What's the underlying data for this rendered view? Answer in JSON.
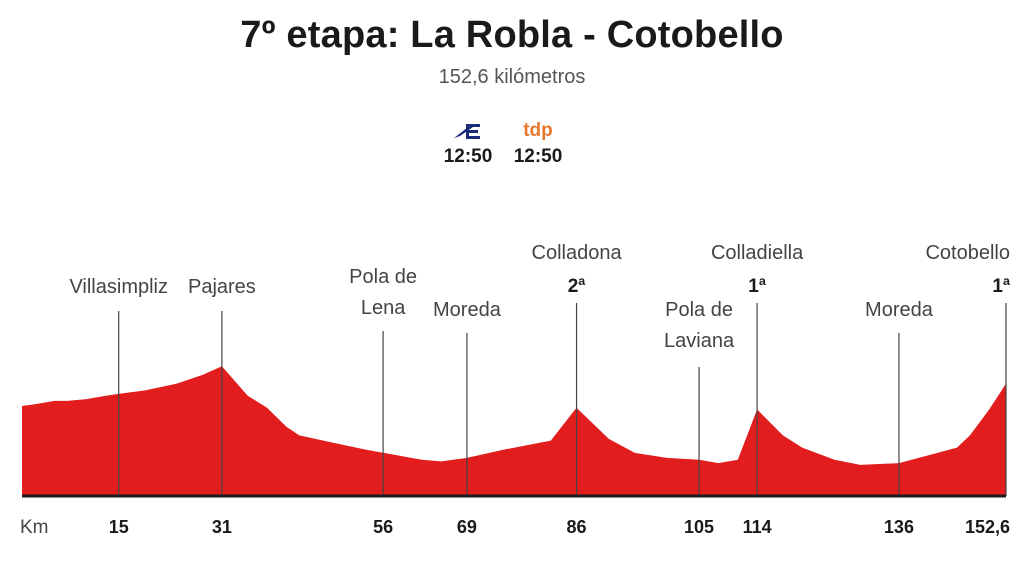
{
  "header": {
    "title": "7º etapa: La Robla - Cotobello",
    "subtitle": "152,6 kilómetros"
  },
  "broadcasters": [
    {
      "logo_icon": "eurosport-icon",
      "time": "12:50"
    },
    {
      "logo_text": "tdp",
      "time": "12:50",
      "logo_color": "#e8772e"
    }
  ],
  "colors": {
    "fill": "#e11d1d",
    "axis": "#1a1a1a",
    "marker_line": "#444444"
  },
  "chart_data": {
    "type": "area",
    "xlabel": "Km",
    "x_ticks": [
      {
        "x": 15,
        "label": "15"
      },
      {
        "x": 31,
        "label": "31"
      },
      {
        "x": 56,
        "label": "56"
      },
      {
        "x": 69,
        "label": "69"
      },
      {
        "x": 86,
        "label": "86"
      },
      {
        "x": 105,
        "label": "105"
      },
      {
        "x": 114,
        "label": "114"
      },
      {
        "x": 136,
        "label": "136"
      },
      {
        "x": 152.6,
        "label": "152,6"
      }
    ],
    "profile": [
      [
        0,
        52
      ],
      [
        2,
        53
      ],
      [
        5,
        55
      ],
      [
        7,
        55
      ],
      [
        10,
        56
      ],
      [
        13,
        58
      ],
      [
        15,
        59
      ],
      [
        19,
        61
      ],
      [
        24,
        65
      ],
      [
        28,
        70
      ],
      [
        31,
        75
      ],
      [
        35,
        58
      ],
      [
        38,
        51
      ],
      [
        41,
        40
      ],
      [
        43,
        35
      ],
      [
        48,
        31
      ],
      [
        53,
        27
      ],
      [
        56,
        25
      ],
      [
        62,
        21
      ],
      [
        65,
        20
      ],
      [
        69,
        22
      ],
      [
        75,
        27
      ],
      [
        82,
        32
      ],
      [
        86,
        51
      ],
      [
        91,
        33
      ],
      [
        95,
        25
      ],
      [
        100,
        22
      ],
      [
        105,
        21
      ],
      [
        108,
        19
      ],
      [
        111,
        21
      ],
      [
        114,
        50
      ],
      [
        118,
        35
      ],
      [
        121,
        28
      ],
      [
        126,
        21
      ],
      [
        130,
        18
      ],
      [
        136,
        19
      ],
      [
        140,
        23
      ],
      [
        145,
        28
      ],
      [
        147,
        35
      ],
      [
        150,
        50
      ],
      [
        152.6,
        65
      ]
    ],
    "places": [
      {
        "name": "Villasimpliz",
        "km": 15
      },
      {
        "name": "Pajares",
        "km": 31
      },
      {
        "name": "Pola de Lena",
        "km": 56
      },
      {
        "name": "Moreda",
        "km": 69
      },
      {
        "name": "Colladona",
        "km": 86,
        "category": "2ª"
      },
      {
        "name": "Pola de Laviana",
        "km": 105
      },
      {
        "name": "Colladiella",
        "km": 114,
        "category": "1ª"
      },
      {
        "name": "Moreda",
        "km": 136
      },
      {
        "name": "Cotobello",
        "km": 152.6,
        "category": "1ª"
      }
    ]
  }
}
